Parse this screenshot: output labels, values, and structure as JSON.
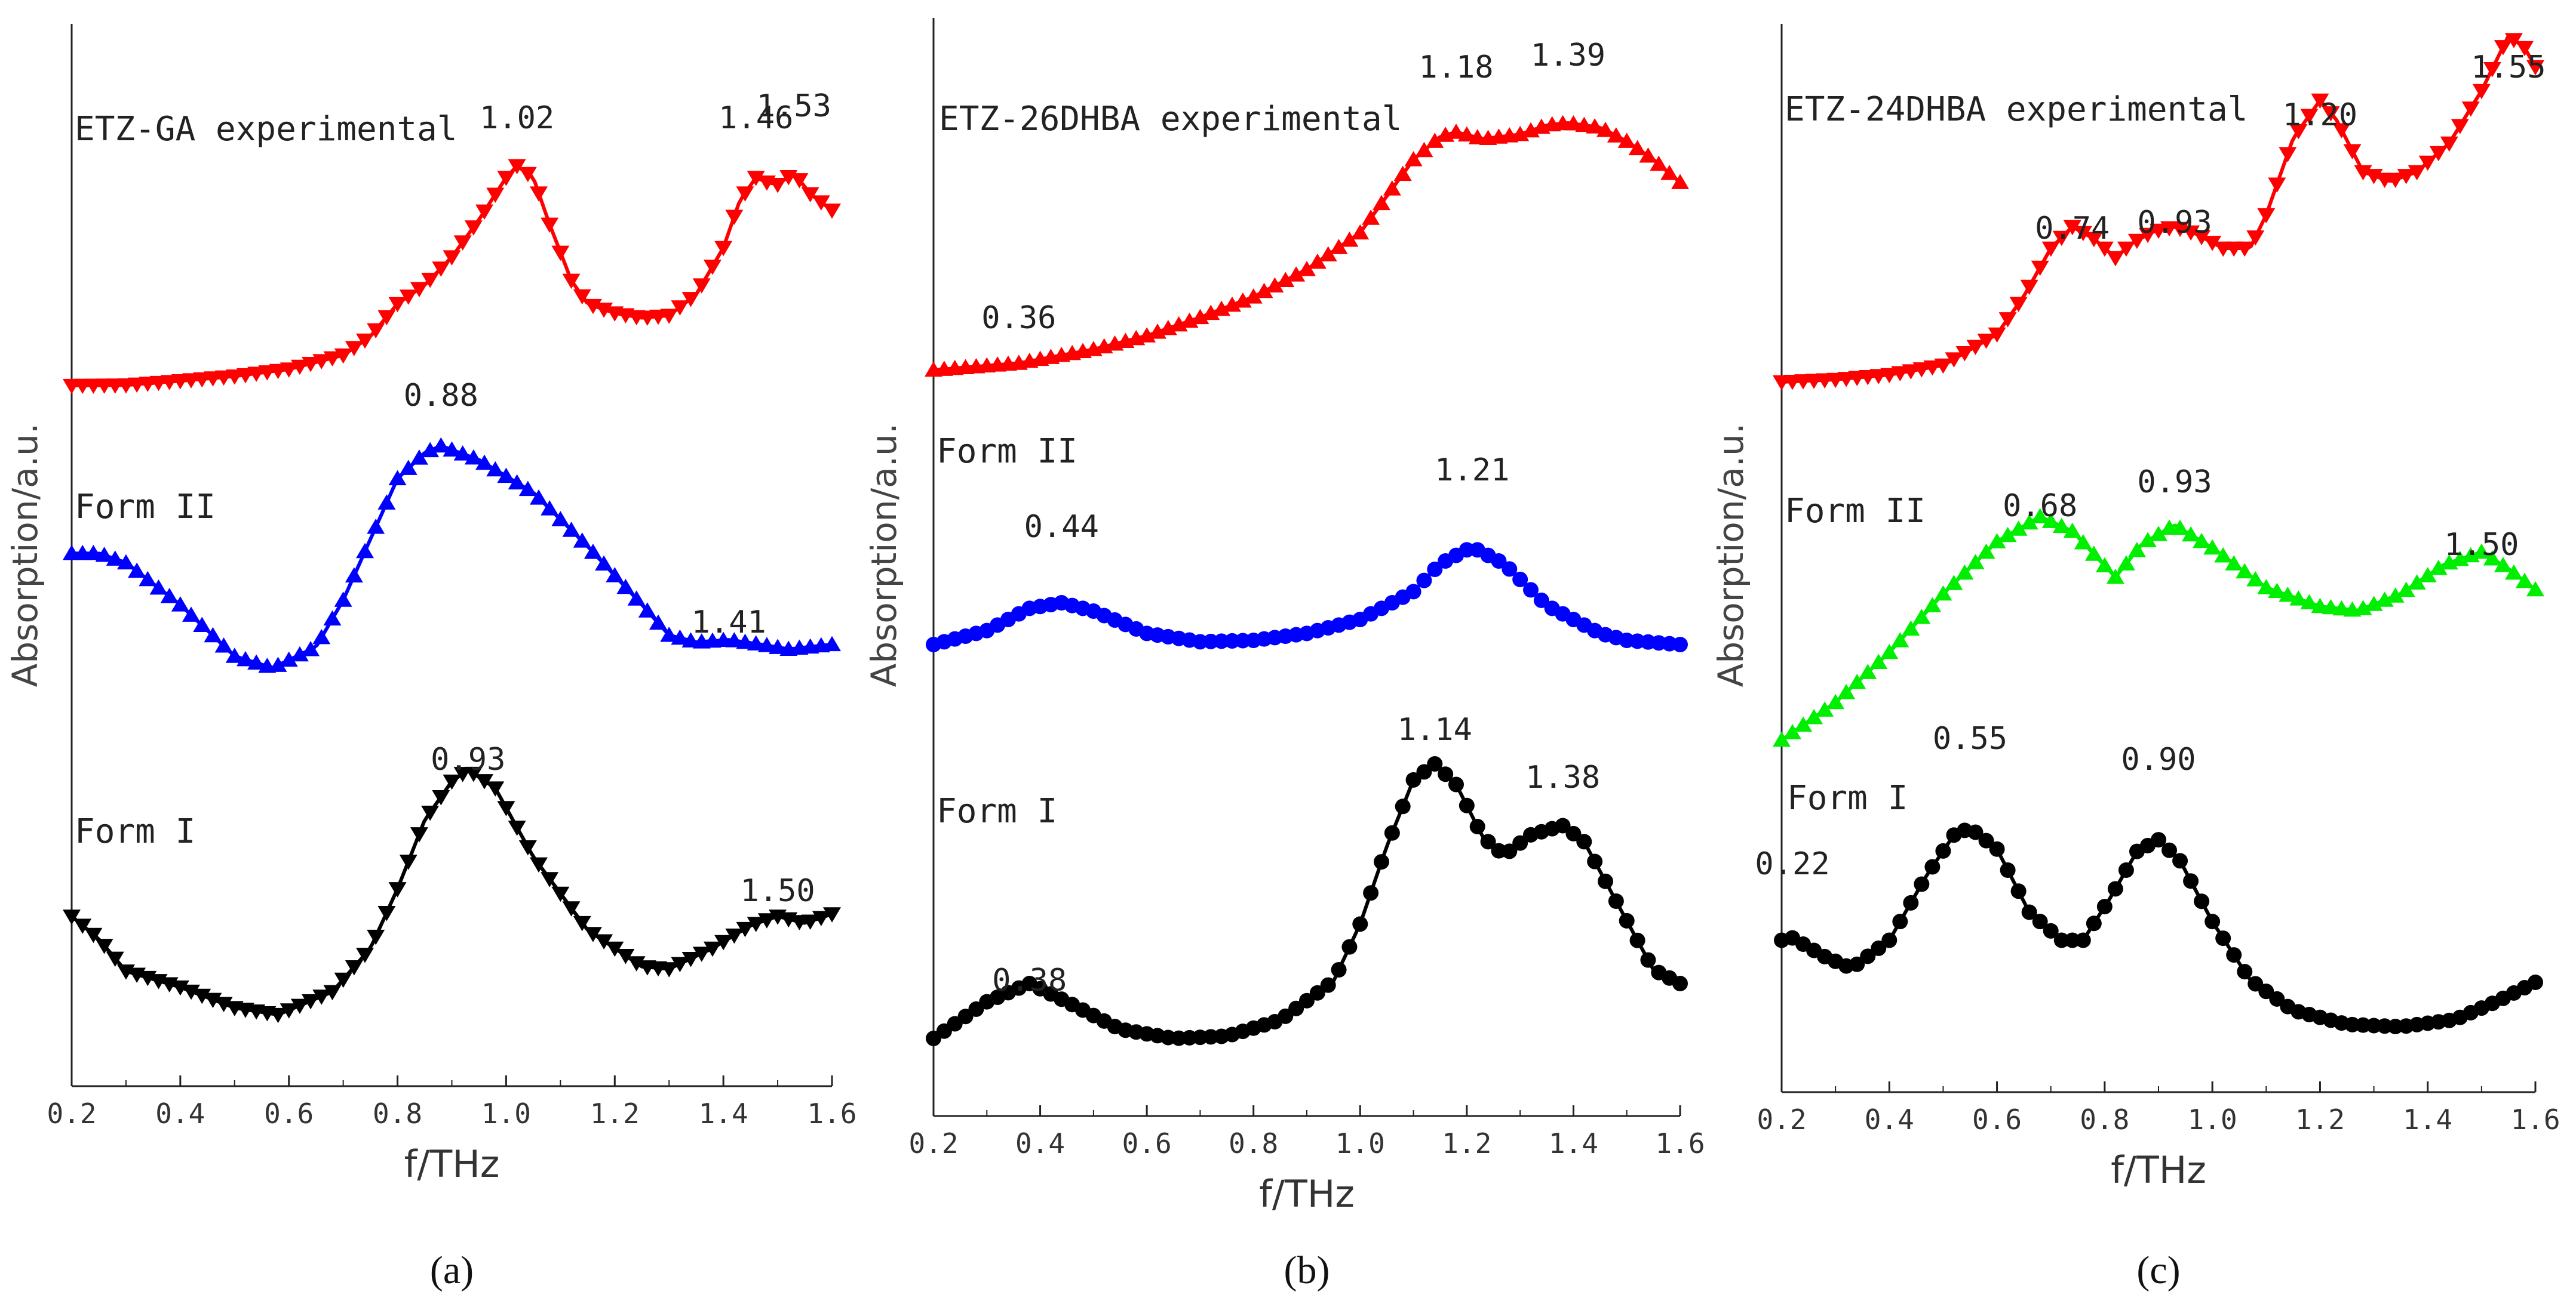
{
  "figure": {
    "panel_labels": [
      "(a)",
      "(b)",
      "(c)"
    ]
  },
  "chart_data": [
    {
      "type": "line",
      "panel": "(a)",
      "xlabel": "f/THz",
      "ylabel": "Absorption/a.u.",
      "xlim": [
        0.2,
        1.6
      ],
      "x_ticks": [
        "0.2",
        "0.4",
        "0.6",
        "0.8",
        "1.0",
        "1.2",
        "1.4",
        "1.6"
      ],
      "y_ticks_labeled": false,
      "series": [
        {
          "name": "ETZ-GA experimental",
          "color": "#ff0000",
          "marker": "triangle-down",
          "points": [
            [
              0.2,
              0.01
            ],
            [
              0.3,
              0.012
            ],
            [
              0.4,
              0.03
            ],
            [
              0.5,
              0.05
            ],
            [
              0.6,
              0.08
            ],
            [
              0.7,
              0.14
            ],
            [
              0.75,
              0.22
            ],
            [
              0.8,
              0.36
            ],
            [
              0.85,
              0.44
            ],
            [
              0.9,
              0.56
            ],
            [
              0.95,
              0.72
            ],
            [
              1.0,
              0.9
            ],
            [
              1.02,
              0.95
            ],
            [
              1.05,
              0.9
            ],
            [
              1.08,
              0.7
            ],
            [
              1.12,
              0.46
            ],
            [
              1.15,
              0.36
            ],
            [
              1.2,
              0.32
            ],
            [
              1.25,
              0.3
            ],
            [
              1.3,
              0.31
            ],
            [
              1.35,
              0.4
            ],
            [
              1.4,
              0.6
            ],
            [
              1.43,
              0.8
            ],
            [
              1.46,
              0.9
            ],
            [
              1.48,
              0.88
            ],
            [
              1.5,
              0.87
            ],
            [
              1.53,
              0.92
            ],
            [
              1.56,
              0.83
            ],
            [
              1.6,
              0.76
            ]
          ],
          "labels": [
            {
              "text": "1.02",
              "x": 1.02
            },
            {
              "text": "1.46",
              "x": 1.46
            },
            {
              "text": "1.53",
              "x": 1.53
            }
          ]
        },
        {
          "name": "Form II",
          "color": "#0000ff",
          "marker": "triangle-up",
          "points": [
            [
              0.2,
              0.62
            ],
            [
              0.25,
              0.62
            ],
            [
              0.3,
              0.58
            ],
            [
              0.4,
              0.4
            ],
            [
              0.5,
              0.18
            ],
            [
              0.57,
              0.13
            ],
            [
              0.65,
              0.22
            ],
            [
              0.7,
              0.42
            ],
            [
              0.75,
              0.68
            ],
            [
              0.8,
              0.94
            ],
            [
              0.85,
              1.05
            ],
            [
              0.88,
              1.08
            ],
            [
              0.95,
              1.02
            ],
            [
              1.05,
              0.88
            ],
            [
              1.15,
              0.65
            ],
            [
              1.25,
              0.4
            ],
            [
              1.3,
              0.27
            ],
            [
              1.35,
              0.24
            ],
            [
              1.41,
              0.25
            ],
            [
              1.47,
              0.23
            ],
            [
              1.52,
              0.21
            ],
            [
              1.6,
              0.23
            ]
          ],
          "labels": [
            {
              "text": "0.88",
              "x": 0.88
            },
            {
              "text": "1.41",
              "x": 1.41
            }
          ]
        },
        {
          "name": "Form I",
          "color": "#000000",
          "marker": "triangle-down",
          "points": [
            [
              0.2,
              0.56
            ],
            [
              0.25,
              0.46
            ],
            [
              0.3,
              0.32
            ],
            [
              0.4,
              0.25
            ],
            [
              0.5,
              0.16
            ],
            [
              0.58,
              0.13
            ],
            [
              0.68,
              0.23
            ],
            [
              0.75,
              0.42
            ],
            [
              0.8,
              0.68
            ],
            [
              0.85,
              0.98
            ],
            [
              0.9,
              1.15
            ],
            [
              0.93,
              1.2
            ],
            [
              0.98,
              1.12
            ],
            [
              1.05,
              0.82
            ],
            [
              1.15,
              0.5
            ],
            [
              1.25,
              0.34
            ],
            [
              1.3,
              0.33
            ],
            [
              1.38,
              0.42
            ],
            [
              1.45,
              0.52
            ],
            [
              1.5,
              0.56
            ],
            [
              1.55,
              0.53
            ],
            [
              1.6,
              0.57
            ]
          ],
          "labels": [
            {
              "text": "0.93",
              "x": 0.93
            },
            {
              "text": "1.50",
              "x": 1.5
            }
          ]
        }
      ]
    },
    {
      "type": "line",
      "panel": "(b)",
      "xlabel": "f/THz",
      "ylabel": "Absorption/a.u.",
      "xlim": [
        0.2,
        1.6
      ],
      "x_ticks": [
        "0.2",
        "0.4",
        "0.6",
        "0.8",
        "1.0",
        "1.2",
        "1.4",
        "1.6"
      ],
      "y_ticks_labeled": false,
      "series": [
        {
          "name": "ETZ-26DHBA experimental",
          "color": "#ff0000",
          "marker": "triangle-up",
          "points": [
            [
              0.2,
              0.0
            ],
            [
              0.36,
              0.03
            ],
            [
              0.5,
              0.09
            ],
            [
              0.6,
              0.15
            ],
            [
              0.7,
              0.23
            ],
            [
              0.8,
              0.32
            ],
            [
              0.9,
              0.44
            ],
            [
              1.0,
              0.6
            ],
            [
              1.05,
              0.76
            ],
            [
              1.1,
              0.92
            ],
            [
              1.15,
              1.02
            ],
            [
              1.18,
              1.04
            ],
            [
              1.23,
              1.01
            ],
            [
              1.3,
              1.03
            ],
            [
              1.35,
              1.07
            ],
            [
              1.39,
              1.08
            ],
            [
              1.45,
              1.06
            ],
            [
              1.5,
              1.0
            ],
            [
              1.55,
              0.92
            ],
            [
              1.6,
              0.82
            ]
          ],
          "labels": [
            {
              "text": "0.36",
              "x": 0.36
            },
            {
              "text": "1.18",
              "x": 1.18
            },
            {
              "text": "1.39",
              "x": 1.39
            }
          ]
        },
        {
          "name": "Form II",
          "color": "#0000ff",
          "marker": "circle",
          "points": [
            [
              0.2,
              0.0
            ],
            [
              0.3,
              0.1
            ],
            [
              0.38,
              0.26
            ],
            [
              0.44,
              0.3
            ],
            [
              0.5,
              0.24
            ],
            [
              0.6,
              0.08
            ],
            [
              0.7,
              0.02
            ],
            [
              0.8,
              0.03
            ],
            [
              0.9,
              0.08
            ],
            [
              1.0,
              0.18
            ],
            [
              1.1,
              0.38
            ],
            [
              1.15,
              0.58
            ],
            [
              1.21,
              0.7
            ],
            [
              1.27,
              0.58
            ],
            [
              1.35,
              0.28
            ],
            [
              1.45,
              0.08
            ],
            [
              1.5,
              0.03
            ],
            [
              1.6,
              0.0
            ]
          ],
          "labels": [
            {
              "text": "0.44",
              "x": 0.44
            },
            {
              "text": "1.21",
              "x": 1.21
            }
          ]
        },
        {
          "name": "Form I",
          "color": "#000000",
          "marker": "circle",
          "points": [
            [
              0.2,
              0.0
            ],
            [
              0.3,
              0.16
            ],
            [
              0.38,
              0.24
            ],
            [
              0.45,
              0.16
            ],
            [
              0.55,
              0.04
            ],
            [
              0.65,
              0.0
            ],
            [
              0.75,
              0.01
            ],
            [
              0.85,
              0.08
            ],
            [
              0.95,
              0.25
            ],
            [
              1.0,
              0.5
            ],
            [
              1.05,
              0.84
            ],
            [
              1.1,
              1.13
            ],
            [
              1.14,
              1.2
            ],
            [
              1.18,
              1.11
            ],
            [
              1.23,
              0.88
            ],
            [
              1.27,
              0.8
            ],
            [
              1.32,
              0.89
            ],
            [
              1.38,
              0.93
            ],
            [
              1.42,
              0.86
            ],
            [
              1.48,
              0.6
            ],
            [
              1.55,
              0.3
            ],
            [
              1.6,
              0.24
            ]
          ],
          "labels": [
            {
              "text": "0.38",
              "x": 0.38
            },
            {
              "text": "1.14",
              "x": 1.14
            },
            {
              "text": "1.38",
              "x": 1.38
            }
          ]
        }
      ]
    },
    {
      "type": "line",
      "panel": "(c)",
      "xlabel": "f/THz",
      "ylabel": "Absorption/a.u.",
      "xlim": [
        0.2,
        1.6
      ],
      "x_ticks": [
        "0.2",
        "0.4",
        "0.6",
        "0.8",
        "1.0",
        "1.2",
        "1.4",
        "1.6"
      ],
      "y_ticks_labeled": false,
      "series": [
        {
          "name": "ETZ-24DHBA experimental",
          "color": "#ff0000",
          "marker": "triangle-down",
          "points": [
            [
              0.2,
              0.0
            ],
            [
              0.3,
              0.01
            ],
            [
              0.4,
              0.03
            ],
            [
              0.5,
              0.07
            ],
            [
              0.6,
              0.2
            ],
            [
              0.65,
              0.36
            ],
            [
              0.7,
              0.56
            ],
            [
              0.74,
              0.65
            ],
            [
              0.78,
              0.6
            ],
            [
              0.82,
              0.52
            ],
            [
              0.85,
              0.58
            ],
            [
              0.89,
              0.63
            ],
            [
              0.93,
              0.65
            ],
            [
              0.97,
              0.62
            ],
            [
              1.02,
              0.56
            ],
            [
              1.07,
              0.56
            ],
            [
              1.1,
              0.7
            ],
            [
              1.15,
              1.02
            ],
            [
              1.2,
              1.18
            ],
            [
              1.23,
              1.1
            ],
            [
              1.28,
              0.88
            ],
            [
              1.33,
              0.84
            ],
            [
              1.38,
              0.88
            ],
            [
              1.44,
              1.0
            ],
            [
              1.5,
              1.22
            ],
            [
              1.55,
              1.45
            ],
            [
              1.58,
              1.4
            ],
            [
              1.6,
              1.32
            ]
          ],
          "labels": [
            {
              "text": "0.74",
              "x": 0.74
            },
            {
              "text": "0.93",
              "x": 0.93
            },
            {
              "text": "1.20",
              "x": 1.2
            },
            {
              "text": "1.55",
              "x": 1.55
            }
          ]
        },
        {
          "name": "Form II",
          "color": "#00ee00",
          "marker": "triangle-up",
          "points": [
            [
              0.2,
              0.0
            ],
            [
              0.3,
              0.18
            ],
            [
              0.4,
              0.42
            ],
            [
              0.5,
              0.7
            ],
            [
              0.6,
              0.95
            ],
            [
              0.68,
              1.07
            ],
            [
              0.74,
              1.0
            ],
            [
              0.82,
              0.78
            ],
            [
              0.87,
              0.94
            ],
            [
              0.93,
              1.03
            ],
            [
              1.0,
              0.92
            ],
            [
              1.1,
              0.73
            ],
            [
              1.2,
              0.64
            ],
            [
              1.27,
              0.62
            ],
            [
              1.35,
              0.7
            ],
            [
              1.43,
              0.84
            ],
            [
              1.5,
              0.9
            ],
            [
              1.55,
              0.82
            ],
            [
              1.6,
              0.72
            ]
          ],
          "labels": [
            {
              "text": "0.68",
              "x": 0.68
            },
            {
              "text": "0.93",
              "x": 0.93
            },
            {
              "text": "1.50",
              "x": 1.5
            }
          ]
        },
        {
          "name": "Form I",
          "color": "#000000",
          "marker": "circle",
          "points": [
            [
              0.2,
              0.42
            ],
            [
              0.22,
              0.43
            ],
            [
              0.28,
              0.35
            ],
            [
              0.33,
              0.3
            ],
            [
              0.4,
              0.42
            ],
            [
              0.47,
              0.7
            ],
            [
              0.52,
              0.87
            ],
            [
              0.55,
              0.9
            ],
            [
              0.6,
              0.81
            ],
            [
              0.66,
              0.54
            ],
            [
              0.72,
              0.42
            ],
            [
              0.76,
              0.42
            ],
            [
              0.81,
              0.6
            ],
            [
              0.86,
              0.8
            ],
            [
              0.9,
              0.85
            ],
            [
              0.94,
              0.76
            ],
            [
              1.0,
              0.5
            ],
            [
              1.07,
              0.25
            ],
            [
              1.15,
              0.12
            ],
            [
              1.25,
              0.06
            ],
            [
              1.35,
              0.05
            ],
            [
              1.45,
              0.08
            ],
            [
              1.53,
              0.16
            ],
            [
              1.6,
              0.24
            ]
          ],
          "labels": [
            {
              "text": "0.22",
              "x": 0.22
            },
            {
              "text": "0.55",
              "x": 0.55
            },
            {
              "text": "0.90",
              "x": 0.9
            }
          ]
        }
      ]
    }
  ]
}
